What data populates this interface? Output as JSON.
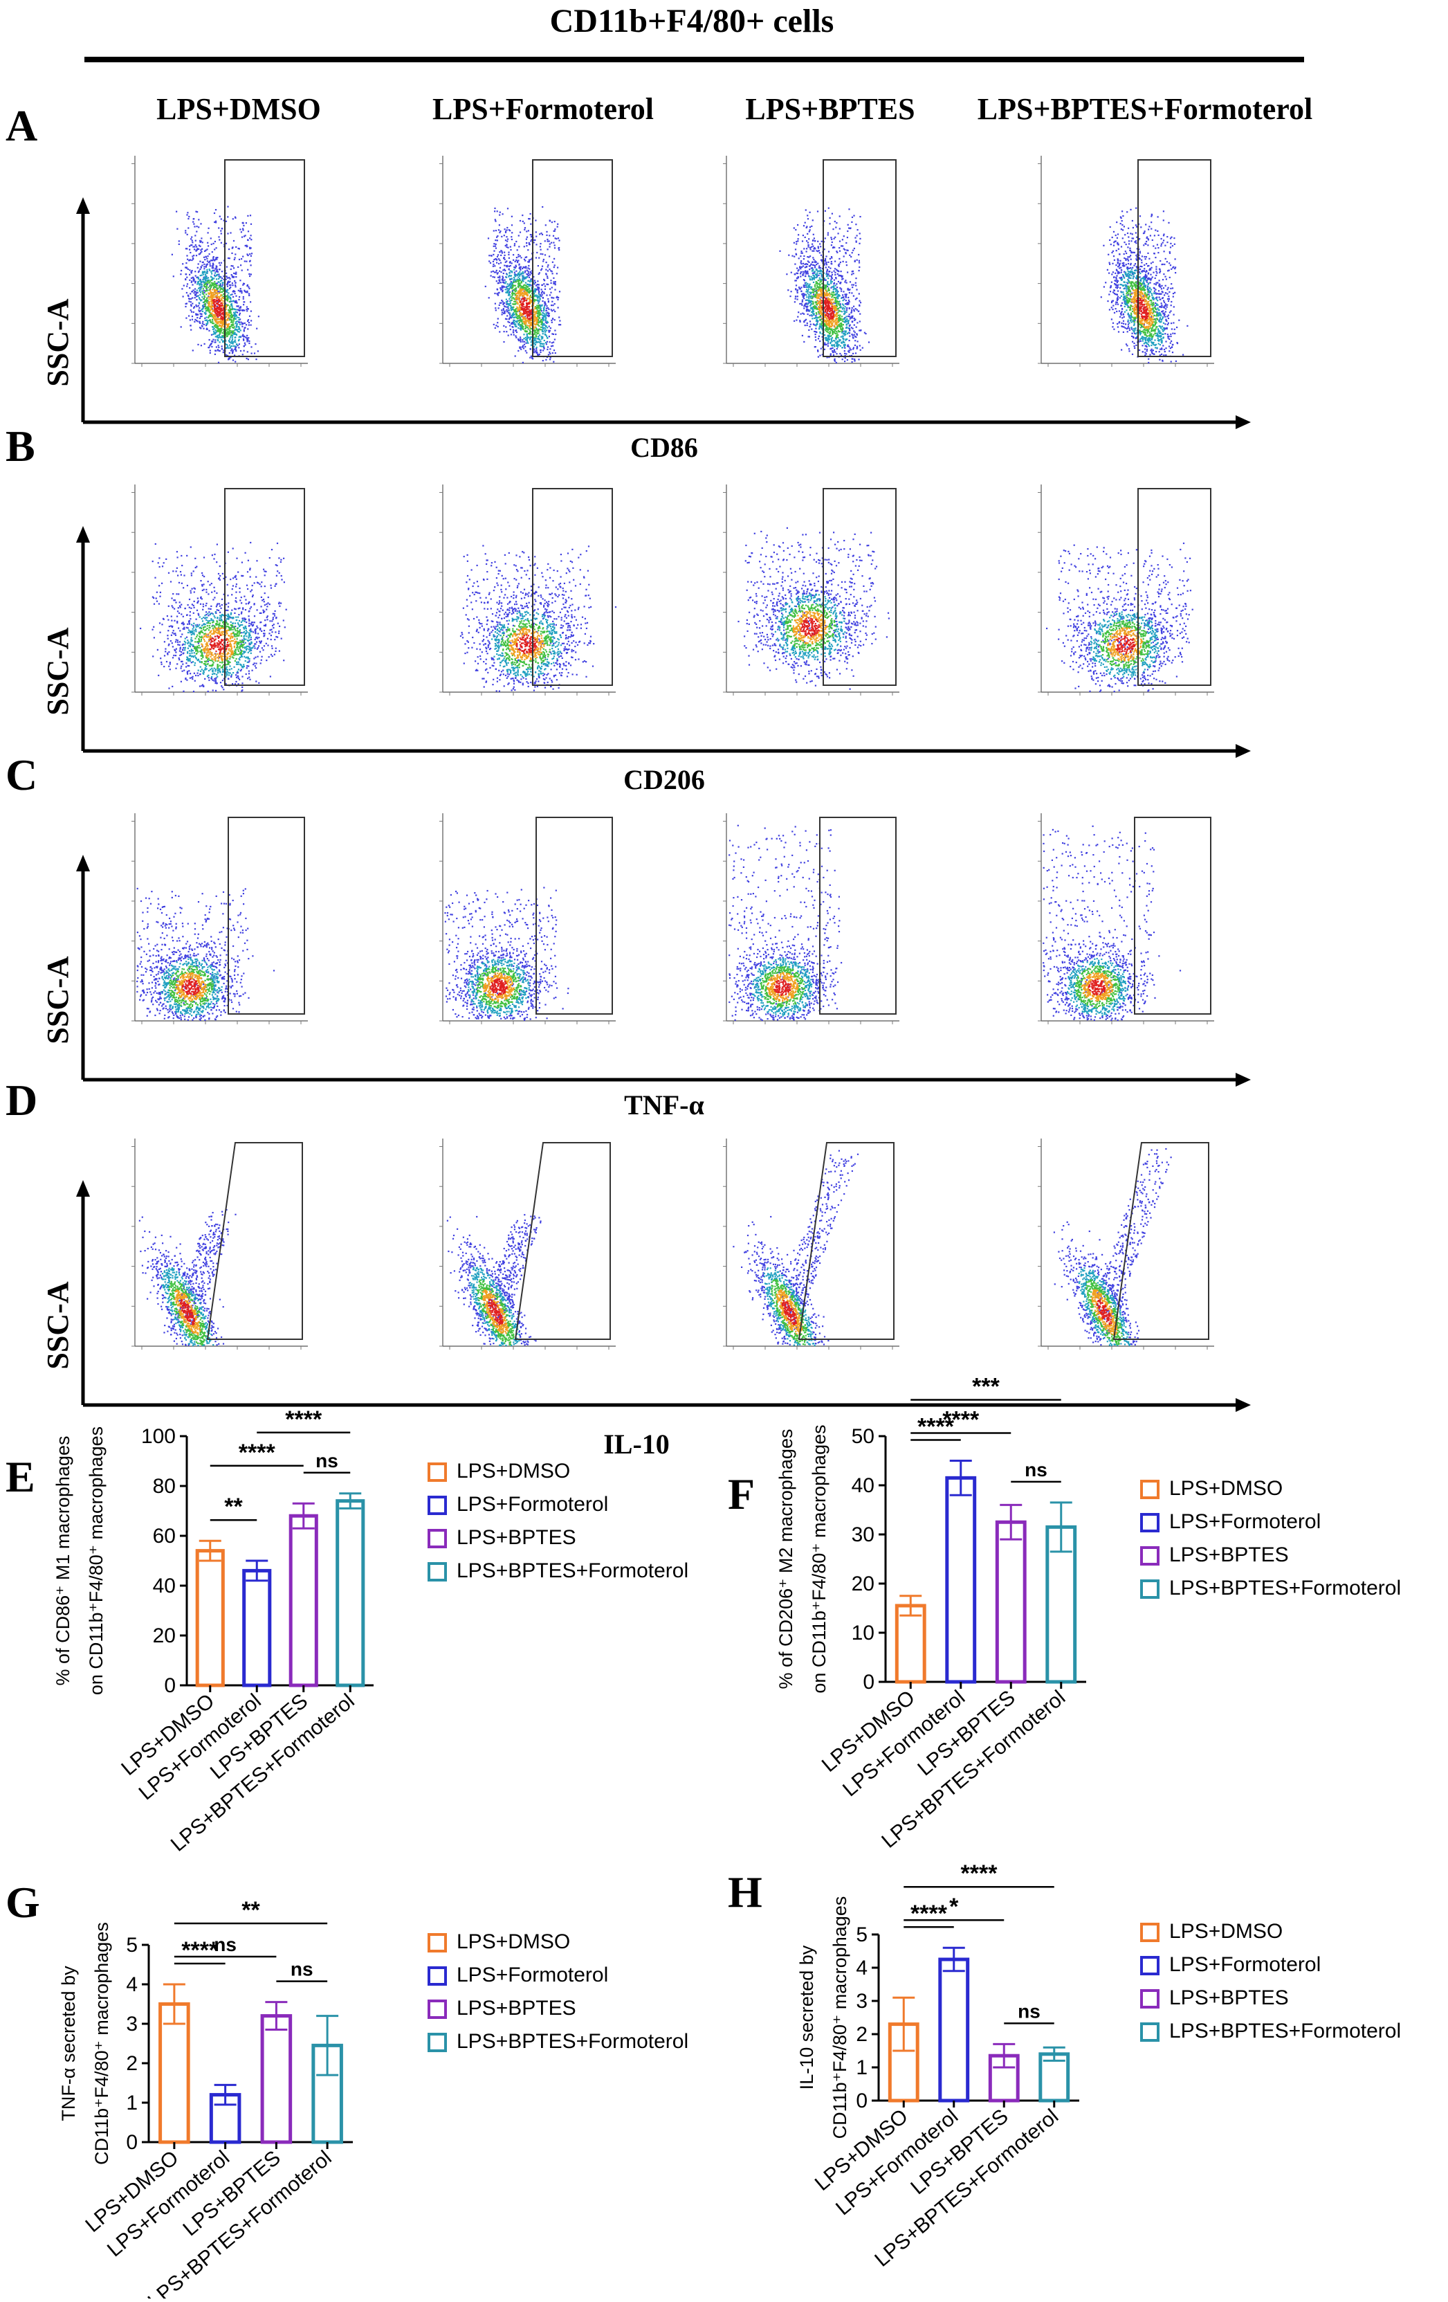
{
  "header": {
    "title": "CD11b+F4/80+ cells"
  },
  "groups": [
    "LPS+DMSO",
    "LPS+Formoterol",
    "LPS+BPTES",
    "LPS+BPTES+Formoterol"
  ],
  "colors": {
    "LPS+DMSO": "#f07a2c",
    "LPS+Formoterol": "#2a2ad0",
    "LPS+BPTES": "#8a2bbb",
    "LPS+BPTES+Formoterol": "#2a92a8"
  },
  "flow_panels": [
    {
      "letter": "A",
      "marker_title": "",
      "ylabel": "SSC-A",
      "gate_shape": "rect"
    },
    {
      "letter": "B",
      "marker_title": "CD86",
      "ylabel": "SSC-A",
      "gate_shape": "rect"
    },
    {
      "letter": "C",
      "marker_title": "CD206",
      "ylabel": "SSC-A",
      "gate_shape": "rect"
    },
    {
      "letter": "D",
      "marker_title": "TNF-α",
      "ylabel": "SSC-A",
      "gate_shape": "slant"
    }
  ],
  "chart_data": [
    {
      "panel": "E",
      "type": "bar",
      "categories": [
        "LPS+DMSO",
        "LPS+Formoterol",
        "LPS+BPTES",
        "LPS+BPTES+Formoterol"
      ],
      "values": [
        54,
        46,
        68,
        74
      ],
      "errors": [
        4,
        4,
        5,
        3
      ],
      "ylabel_line1": "% of CD86⁺ M1 macrophages",
      "ylabel_line2": "on CD11b⁺F4/80⁺ macrophages",
      "ylim": [
        0,
        100
      ],
      "yticks": [
        0,
        20,
        40,
        60,
        80,
        100
      ],
      "title": "IL-10",
      "significance": [
        {
          "from": 0,
          "to": 1,
          "label": "**"
        },
        {
          "from": 0,
          "to": 2,
          "label": "****"
        },
        {
          "from": 2,
          "to": 3,
          "label": "ns"
        },
        {
          "from": 1,
          "to": 3,
          "label": "****"
        }
      ]
    },
    {
      "panel": "F",
      "type": "bar",
      "categories": [
        "LPS+DMSO",
        "LPS+Formoterol",
        "LPS+BPTES",
        "LPS+BPTES+Formoterol"
      ],
      "values": [
        15.5,
        41.5,
        32.5,
        31.5
      ],
      "errors": [
        2,
        3.5,
        3.5,
        5
      ],
      "ylabel_line1": "% of CD206⁺ M2 macrophages",
      "ylabel_line2": "on CD11b⁺F4/80⁺ macrophages",
      "ylim": [
        0,
        50
      ],
      "yticks": [
        0,
        10,
        20,
        30,
        40,
        50
      ],
      "significance": [
        {
          "from": 0,
          "to": 1,
          "label": "****"
        },
        {
          "from": 0,
          "to": 2,
          "label": "****"
        },
        {
          "from": 0,
          "to": 3,
          "label": "***"
        },
        {
          "from": 2,
          "to": 3,
          "label": "ns"
        }
      ]
    },
    {
      "panel": "G",
      "type": "bar",
      "categories": [
        "LPS+DMSO",
        "LPS+Formoterol",
        "LPS+BPTES",
        "LPS+BPTES+Formoterol"
      ],
      "values": [
        3.5,
        1.2,
        3.2,
        2.45
      ],
      "errors": [
        0.5,
        0.25,
        0.35,
        0.75
      ],
      "ylabel_line1": "TNF-α secreted by",
      "ylabel_line2": "CD11b⁺F4/80⁺ macrophages",
      "ylim": [
        0,
        5
      ],
      "yticks": [
        0,
        1,
        2,
        3,
        4,
        5
      ],
      "significance": [
        {
          "from": 0,
          "to": 1,
          "label": "****"
        },
        {
          "from": 0,
          "to": 2,
          "label": "ns"
        },
        {
          "from": 0,
          "to": 3,
          "label": "**"
        },
        {
          "from": 2,
          "to": 3,
          "label": "ns"
        }
      ]
    },
    {
      "panel": "H",
      "type": "bar",
      "categories": [
        "LPS+DMSO",
        "LPS+Formoterol",
        "LPS+BPTES",
        "LPS+BPTES+Formoterol"
      ],
      "values": [
        2.3,
        4.25,
        1.35,
        1.4
      ],
      "errors": [
        0.8,
        0.35,
        0.35,
        0.2
      ],
      "ylabel_line1": "IL-10 secreted by",
      "ylabel_line2": "CD11b⁺F4/80⁺ macrophages",
      "ylim": [
        0,
        5
      ],
      "yticks": [
        0,
        1,
        2,
        3,
        4,
        5
      ],
      "significance": [
        {
          "from": 0,
          "to": 1,
          "label": "****"
        },
        {
          "from": 0,
          "to": 2,
          "label": "*"
        },
        {
          "from": 0,
          "to": 3,
          "label": "****"
        },
        {
          "from": 2,
          "to": 3,
          "label": "ns"
        }
      ]
    }
  ]
}
